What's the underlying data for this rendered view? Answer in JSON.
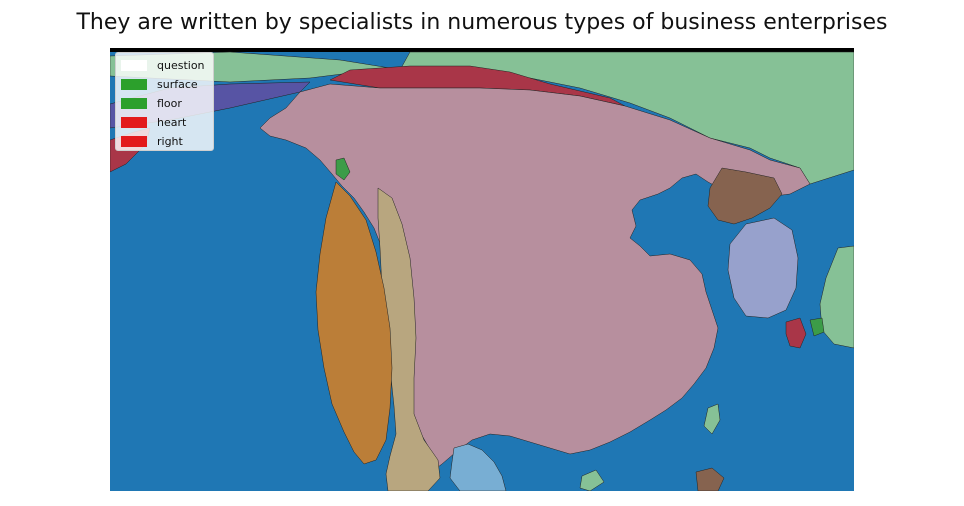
{
  "title": "They are written by specialists in numerous types of business enterprises",
  "colors": {
    "water": "#1f77b4",
    "main_land": "#b78f9e",
    "mint": "#86c196",
    "brown_orange": "#bb7e38",
    "tan": "#b8a67f",
    "red": "#a93648",
    "indigo": "#5754a4",
    "lavender": "#97a1cc",
    "dark_brown": "#86634f",
    "light_blue": "#78aed3",
    "green": "#3c9c48"
  },
  "legend": [
    {
      "label": "question",
      "color": "#ffffff"
    },
    {
      "label": "surface",
      "color": "#2ca02c"
    },
    {
      "label": "floor",
      "color": "#2ca02c"
    },
    {
      "label": "heart",
      "color": "#e31a1c"
    },
    {
      "label": "right",
      "color": "#e31a1c"
    }
  ]
}
